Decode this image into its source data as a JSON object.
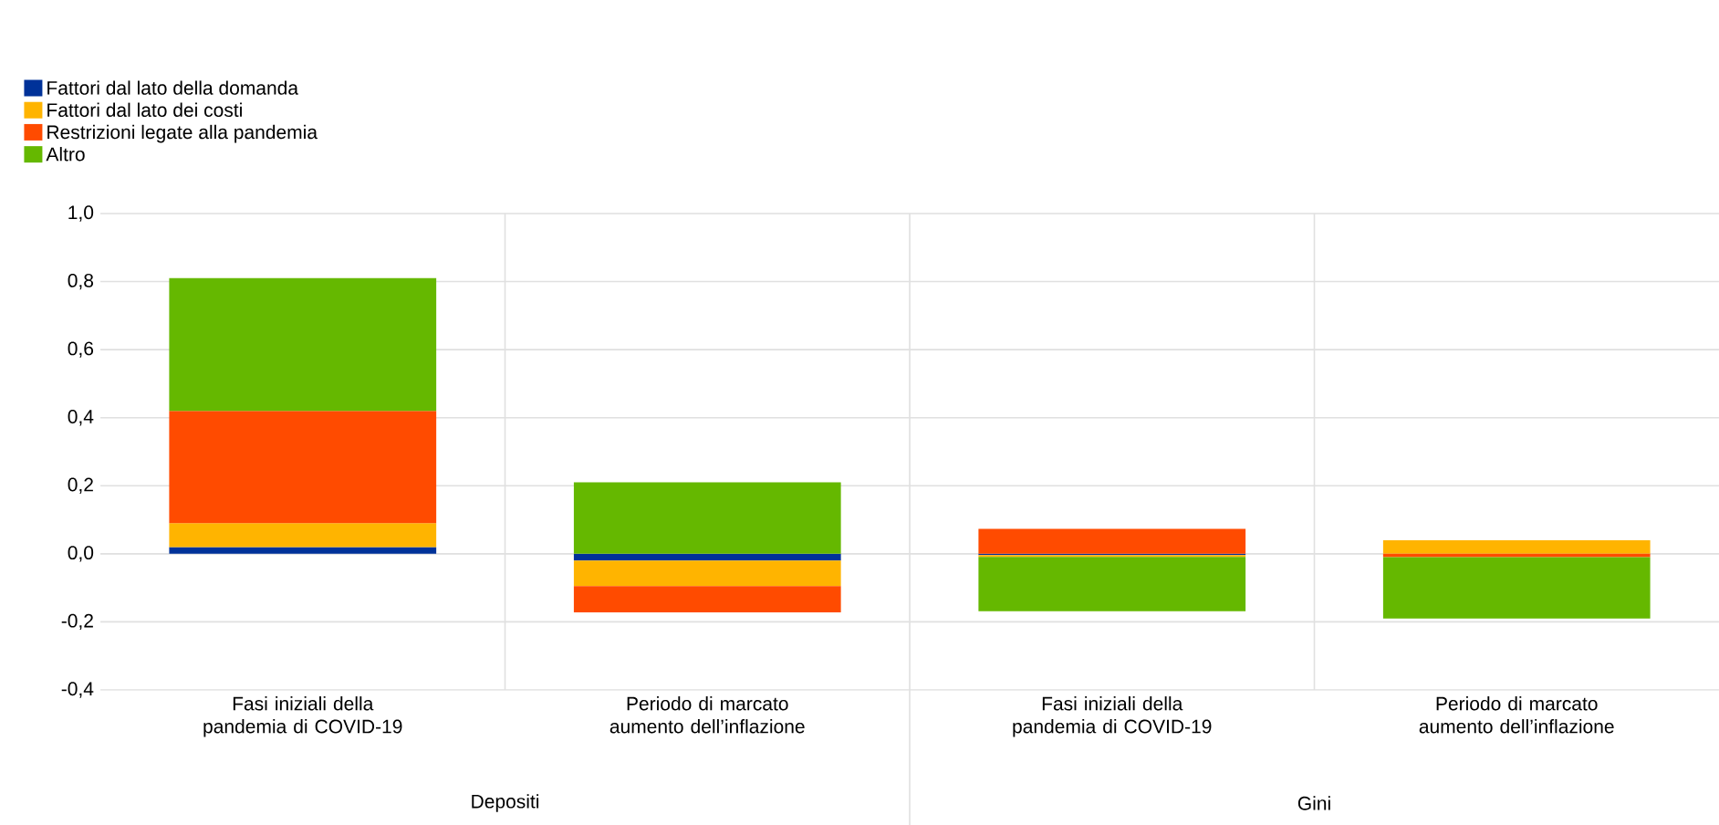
{
  "chart_data": {
    "type": "bar",
    "stacked": true,
    "categories": [
      "Fasi iniziali della pandemia di COVID-19",
      "Periodo di marcato aumento dell’inflazione",
      "Fasi iniziali della pandemia di COVID-19",
      "Periodo di marcato aumento dell’inflazione"
    ],
    "series": [
      {
        "name": "Fattori dal lato della domanda",
        "color": "#003299",
        "values": [
          0.02,
          -0.02,
          -0.004,
          0
        ]
      },
      {
        "name": "Fattori dal lato dei costi",
        "color": "#ffb400",
        "values": [
          0.07,
          -0.075,
          -0.005,
          0.04
        ]
      },
      {
        "name": "Restrizioni legate alla pandemia",
        "color": "#ff4b00",
        "values": [
          0.33,
          -0.077,
          0.073,
          -0.01
        ]
      },
      {
        "name": "Altro",
        "color": "#65b800",
        "values": [
          0.39,
          0.21,
          -0.16,
          -0.18
        ]
      }
    ],
    "ylim": [
      -0.4,
      1.0
    ],
    "yticks": [
      {
        "value": -0.4,
        "label": "-0,4"
      },
      {
        "value": -0.2,
        "label": "-0,2"
      },
      {
        "value": 0,
        "label": "0,0"
      },
      {
        "value": 0.2,
        "label": "0,2"
      },
      {
        "value": 0.4,
        "label": "0,4"
      },
      {
        "value": 0.6,
        "label": "0,6"
      },
      {
        "value": 0.8,
        "label": "0,8"
      },
      {
        "value": 1.0,
        "label": "1,0"
      }
    ],
    "annotations": [
      "Depositi",
      "Gini"
    ],
    "grid": true,
    "legend": "top left"
  }
}
